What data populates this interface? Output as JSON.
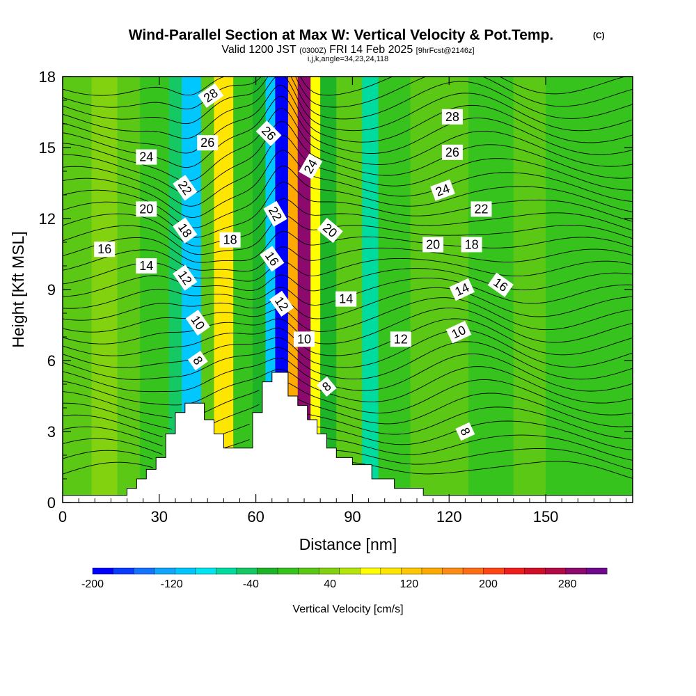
{
  "chart_data": {
    "type": "heatmap",
    "title": "Wind-Parallel Section at Max W: Vertical Velocity & Pot.Temp.",
    "title_mark": "(C)",
    "subtitle": {
      "part1": "Valid 1200 JST",
      "part2": "(0300Z)",
      "part3": "FRI 14 Feb 2025",
      "part4": "[9hrFcst@2146z]"
    },
    "subtitle2": "i,j,k,angle=34,23,24,118",
    "xlabel": "Distance [nm]",
    "ylabel": "Height [Kft MSL]",
    "xlim": [
      0,
      177
    ],
    "ylim": [
      0,
      18
    ],
    "xticks": [
      "0",
      "30",
      "60",
      "90",
      "120",
      "150"
    ],
    "xtick_values": [
      0,
      30,
      60,
      90,
      120,
      150
    ],
    "yticks": [
      "0",
      "3",
      "6",
      "9",
      "12",
      "15",
      "18"
    ],
    "ytick_values": [
      0,
      3,
      6,
      9,
      12,
      15,
      18
    ],
    "colorbar": {
      "label": "Vertical Velocity [cm/s]",
      "tick_labels": [
        "-200",
        "-120",
        "-40",
        "40",
        "120",
        "200",
        "280"
      ],
      "tick_values": [
        -200,
        -120,
        -40,
        40,
        120,
        200,
        280
      ],
      "range": [
        -200,
        320
      ],
      "colors": [
        "#0000ff",
        "#0a3cff",
        "#1473ff",
        "#0ea6ff",
        "#00c8ff",
        "#00e6f0",
        "#00dca0",
        "#14c864",
        "#1eb428",
        "#37c31e",
        "#5ac814",
        "#82d20f",
        "#b4e60a",
        "#ffff00",
        "#ffe600",
        "#ffc800",
        "#ffaa00",
        "#ff8c14",
        "#ff6e14",
        "#ff4614",
        "#f01e1e",
        "#d20f28",
        "#b40a46",
        "#8c0a6e",
        "#6e0a8c"
      ]
    },
    "w_bands": [
      {
        "x": [
          0,
          9
        ],
        "w": 15
      },
      {
        "x": [
          9,
          17
        ],
        "w": 30
      },
      {
        "x": [
          17,
          24
        ],
        "w": 20
      },
      {
        "x": [
          24,
          33
        ],
        "w": 5
      },
      {
        "x": [
          33,
          37
        ],
        "w": -40
      },
      {
        "x": [
          37,
          43
        ],
        "w": -110
      },
      {
        "x": [
          43,
          47
        ],
        "w": 20
      },
      {
        "x": [
          47,
          53
        ],
        "w": 95
      },
      {
        "x": [
          53,
          59
        ],
        "w": 0
      },
      {
        "x": [
          59,
          63
        ],
        "w": -30
      },
      {
        "x": [
          63,
          66
        ],
        "w": -110
      },
      {
        "x": [
          66,
          70
        ],
        "w": -200
      },
      {
        "x": [
          70,
          73
        ],
        "w": 140
      },
      {
        "x": [
          73,
          77
        ],
        "w": 280
      },
      {
        "x": [
          77,
          80
        ],
        "w": 80
      },
      {
        "x": [
          80,
          85
        ],
        "w": -20
      },
      {
        "x": [
          85,
          93
        ],
        "w": 10
      },
      {
        "x": [
          93,
          98
        ],
        "w": -60
      },
      {
        "x": [
          98,
          108
        ],
        "w": 0
      },
      {
        "x": [
          108,
          118
        ],
        "w": 15
      },
      {
        "x": [
          118,
          126
        ],
        "w": 25
      },
      {
        "x": [
          126,
          140
        ],
        "w": 5
      },
      {
        "x": [
          140,
          150
        ],
        "w": 20
      },
      {
        "x": [
          150,
          162
        ],
        "w": 5
      },
      {
        "x": [
          162,
          177
        ],
        "w": -10
      }
    ],
    "terrain": {
      "x": [
        0,
        20,
        20,
        23,
        23,
        26,
        26,
        29,
        29,
        32,
        32,
        35,
        35,
        38,
        38,
        44,
        44,
        47,
        47,
        50,
        50,
        53,
        53,
        59,
        59,
        62,
        62,
        65,
        65,
        70,
        70,
        73,
        73,
        76,
        76,
        79,
        79,
        82,
        82,
        85,
        85,
        90,
        90,
        96,
        96,
        103,
        103,
        112,
        112,
        177
      ],
      "y": [
        0.3,
        0.3,
        0.6,
        0.6,
        1.0,
        1.0,
        1.4,
        1.4,
        1.9,
        1.9,
        2.9,
        2.9,
        3.8,
        3.8,
        4.2,
        4.2,
        3.5,
        3.5,
        2.9,
        2.9,
        2.3,
        2.3,
        2.3,
        2.3,
        3.8,
        3.8,
        5.1,
        5.1,
        5.5,
        5.5,
        4.5,
        4.5,
        4.1,
        4.1,
        3.5,
        3.5,
        2.9,
        2.9,
        2.3,
        2.3,
        1.9,
        1.9,
        1.6,
        1.6,
        1.0,
        1.0,
        0.6,
        0.6,
        0.3,
        0.3
      ]
    },
    "contour_labels": [
      {
        "text": "28",
        "x": 46,
        "y": 17.2,
        "rot": -35
      },
      {
        "text": "26",
        "x": 45,
        "y": 15.2,
        "rot": 0
      },
      {
        "text": "24",
        "x": 26,
        "y": 14.6,
        "rot": 0
      },
      {
        "text": "22",
        "x": 38,
        "y": 13.3,
        "rot": 55
      },
      {
        "text": "20",
        "x": 26,
        "y": 12.4,
        "rot": 0
      },
      {
        "text": "18",
        "x": 38,
        "y": 11.5,
        "rot": 55
      },
      {
        "text": "18",
        "x": 52,
        "y": 11.1,
        "rot": 0
      },
      {
        "text": "16",
        "x": 13,
        "y": 10.7,
        "rot": 0
      },
      {
        "text": "14",
        "x": 26,
        "y": 10.0,
        "rot": 0
      },
      {
        "text": "12",
        "x": 38,
        "y": 9.5,
        "rot": 55
      },
      {
        "text": "10",
        "x": 42,
        "y": 7.6,
        "rot": 55
      },
      {
        "text": "8",
        "x": 42,
        "y": 6.0,
        "rot": 55
      },
      {
        "text": "26",
        "x": 64,
        "y": 15.6,
        "rot": 45
      },
      {
        "text": "24",
        "x": 77,
        "y": 14.2,
        "rot": -60
      },
      {
        "text": "22",
        "x": 66,
        "y": 12.2,
        "rot": 60
      },
      {
        "text": "20",
        "x": 83,
        "y": 11.5,
        "rot": 40
      },
      {
        "text": "16",
        "x": 65,
        "y": 10.3,
        "rot": 55
      },
      {
        "text": "12",
        "x": 68,
        "y": 8.4,
        "rot": 55
      },
      {
        "text": "10",
        "x": 75,
        "y": 6.9,
        "rot": 0
      },
      {
        "text": "14",
        "x": 88,
        "y": 8.6,
        "rot": 0
      },
      {
        "text": "12",
        "x": 105,
        "y": 6.9,
        "rot": 0
      },
      {
        "text": "8",
        "x": 82,
        "y": 4.9,
        "rot": -40
      },
      {
        "text": "28",
        "x": 121,
        "y": 16.3,
        "rot": 0
      },
      {
        "text": "26",
        "x": 121,
        "y": 14.8,
        "rot": 0
      },
      {
        "text": "24",
        "x": 118,
        "y": 13.2,
        "rot": -20
      },
      {
        "text": "22",
        "x": 130,
        "y": 12.4,
        "rot": 0
      },
      {
        "text": "20",
        "x": 115,
        "y": 10.9,
        "rot": 0
      },
      {
        "text": "18",
        "x": 127,
        "y": 10.9,
        "rot": 0
      },
      {
        "text": "16",
        "x": 136,
        "y": 9.2,
        "rot": 35
      },
      {
        "text": "14",
        "x": 124,
        "y": 9.0,
        "rot": -25
      },
      {
        "text": "10",
        "x": 123,
        "y": 7.2,
        "rot": -25
      },
      {
        "text": "8",
        "x": 125,
        "y": 3.0,
        "rot": 65
      }
    ]
  }
}
